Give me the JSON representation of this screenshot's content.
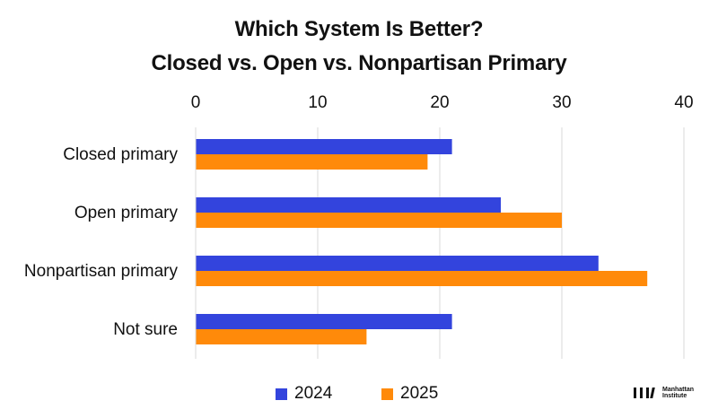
{
  "chart_data": {
    "type": "bar",
    "orientation": "horizontal",
    "title": [
      "Which System Is Better?",
      "Closed vs. Open vs. Nonpartisan Primary"
    ],
    "categories": [
      "Closed primary",
      "Open primary",
      "Nonpartisan primary",
      "Not sure"
    ],
    "series": [
      {
        "name": "2024",
        "color": "#3344dd",
        "values": [
          21,
          25,
          33,
          21
        ]
      },
      {
        "name": "2025",
        "color": "#ff8a0a",
        "values": [
          19,
          30,
          37,
          14
        ]
      }
    ],
    "xlim": [
      0,
      40
    ],
    "xticks": [
      "0",
      "10",
      "20",
      "30",
      "40"
    ],
    "x_axis_position": "top",
    "grid": true,
    "legend": "bottom-center"
  },
  "branding": {
    "logo_text": "Manhattan Institute"
  }
}
